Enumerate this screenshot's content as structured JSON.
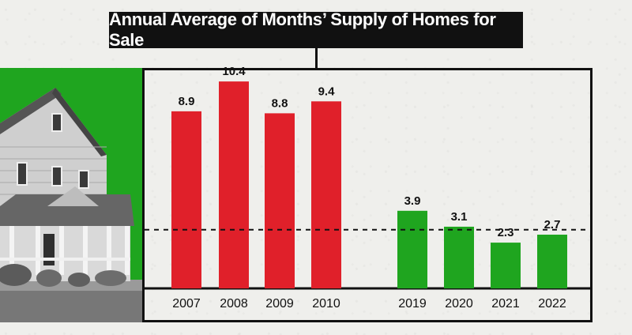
{
  "chart_data": {
    "type": "bar",
    "title": "Annual Average of Months’ Supply of Homes for Sale",
    "categories": [
      "2007",
      "2008",
      "2009",
      "2010",
      "2019",
      "2020",
      "2021",
      "2022"
    ],
    "values": [
      8.9,
      10.4,
      8.8,
      9.4,
      3.9,
      3.1,
      2.3,
      2.7
    ],
    "bar_colors": [
      "#e0202a",
      "#e0202a",
      "#e0202a",
      "#e0202a",
      "#1fa51f",
      "#1fa51f",
      "#1fa51f",
      "#1fa51f"
    ],
    "reference_line": 2.95,
    "ylim": [
      0,
      11
    ],
    "xlabel": "",
    "ylabel": "",
    "grid": false,
    "legend": "none"
  },
  "colors": {
    "red": "#e0202a",
    "green": "#1fa51f",
    "title_bg": "#111111"
  },
  "decoration": {
    "image": "house-photo"
  }
}
